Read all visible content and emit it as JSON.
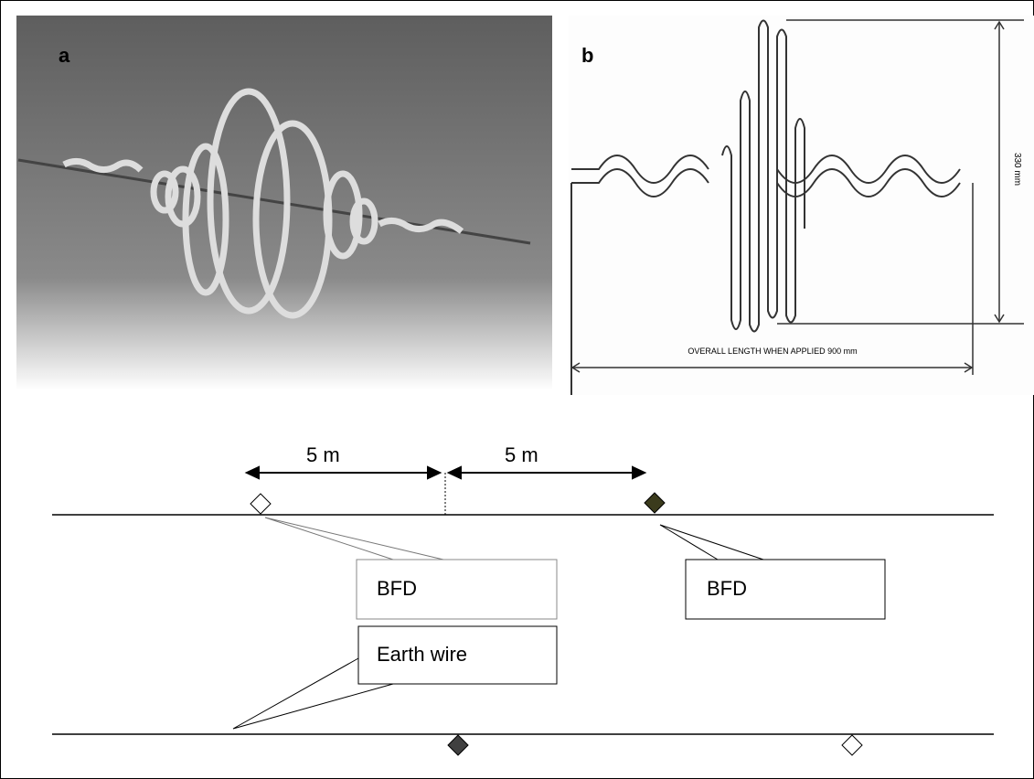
{
  "panels": [
    {
      "label": "a"
    },
    {
      "label": "b",
      "height_dimension": "330 mm",
      "length_dimension": "OVERALL LENGTH WHEN APPLIED 900 mm"
    }
  ],
  "diagram": {
    "spacing_left": "5 m",
    "spacing_right": "5 m",
    "callouts": [
      "BFD",
      "BFD",
      "Earth wire"
    ]
  }
}
